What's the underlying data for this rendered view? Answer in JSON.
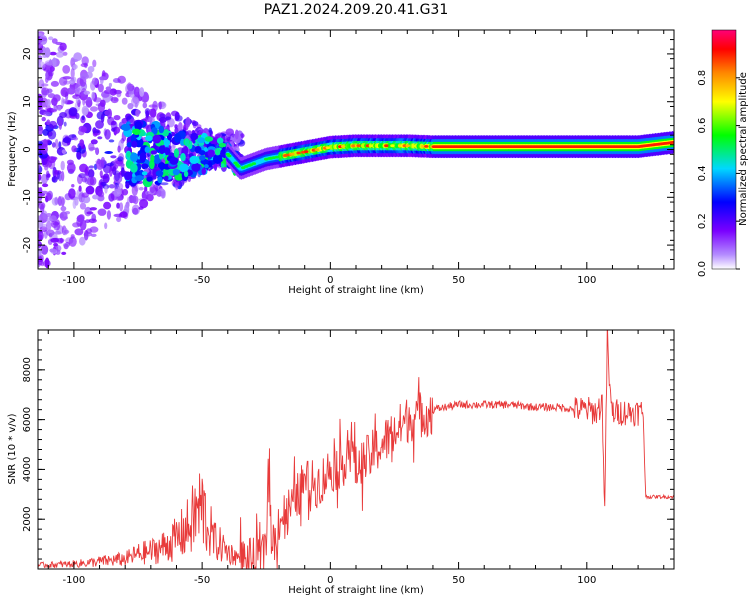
{
  "title": "PAZ1.2024.209.20.41.G31",
  "colors": {
    "snr_line": "#e83a3a",
    "axis": "#000000"
  },
  "chart_data": [
    {
      "type": "heatmap",
      "xlabel": "Height of straight line (km)",
      "ylabel": "Frequency (Hz)",
      "xlim": [
        -114,
        134
      ],
      "ylim": [
        -25,
        25
      ],
      "x_ticks": [
        -100,
        -50,
        0,
        50,
        100
      ],
      "y_ticks": [
        -20,
        -10,
        0,
        10,
        20
      ],
      "colorbar": {
        "label": "Normalized spectral amplitude",
        "range": [
          0,
          1
        ],
        "ticks": [
          0.0,
          0.2,
          0.4,
          0.6,
          0.8
        ],
        "colormap": [
          "#ffffff",
          "#7a00ff",
          "#0000ff",
          "#00d8ff",
          "#00ff00",
          "#ffff00",
          "#ff8800",
          "#ff0000",
          "#ff0077"
        ]
      },
      "ridge": {
        "x": [
          -40,
          -35,
          -30,
          -25,
          -20,
          -10,
          0,
          10,
          20,
          30,
          40,
          60,
          80,
          100,
          120,
          134
        ],
        "freq": [
          -1,
          -4,
          -3,
          -2,
          -1.5,
          -0.5,
          0.5,
          0.8,
          0.8,
          0.8,
          0.6,
          0.6,
          0.6,
          0.6,
          0.6,
          1.5
        ]
      }
    },
    {
      "type": "line",
      "xlabel": "Height of straight line (km)",
      "ylabel": "SNR (10 * v/v)",
      "xlim": [
        -114,
        134
      ],
      "ylim": [
        0,
        9600
      ],
      "x_ticks": [
        -100,
        -50,
        0,
        50,
        100
      ],
      "y_ticks": [
        2000,
        4000,
        6000,
        8000
      ],
      "series": [
        {
          "x": [
            -114,
            -100,
            -90,
            -80,
            -75,
            -70,
            -65,
            -60,
            -55,
            -52,
            -50,
            -48,
            -45,
            -42,
            -40,
            -35,
            -30,
            -26,
            -24,
            -23,
            -22,
            -20,
            -15,
            -10,
            -5,
            0,
            5,
            8,
            10,
            15,
            20,
            25,
            30,
            40,
            50,
            60,
            70,
            80,
            85,
            90,
            95,
            100,
            104,
            106,
            107,
            108,
            109,
            110,
            115,
            122,
            123,
            125,
            130,
            134
          ],
          "y": [
            150,
            200,
            300,
            400,
            600,
            700,
            900,
            1200,
            1700,
            2300,
            2500,
            1800,
            1100,
            900,
            700,
            400,
            300,
            500,
            3500,
            1500,
            1000,
            2000,
            2500,
            3500,
            3400,
            4000,
            4200,
            5200,
            4000,
            4500,
            5000,
            5500,
            6000,
            6400,
            6600,
            6600,
            6600,
            6500,
            6500,
            6500,
            6400,
            6400,
            6300,
            6700,
            2300,
            9500,
            7000,
            6300,
            6300,
            6300,
            2900,
            2900,
            2900,
            2900
          ]
        }
      ]
    }
  ]
}
